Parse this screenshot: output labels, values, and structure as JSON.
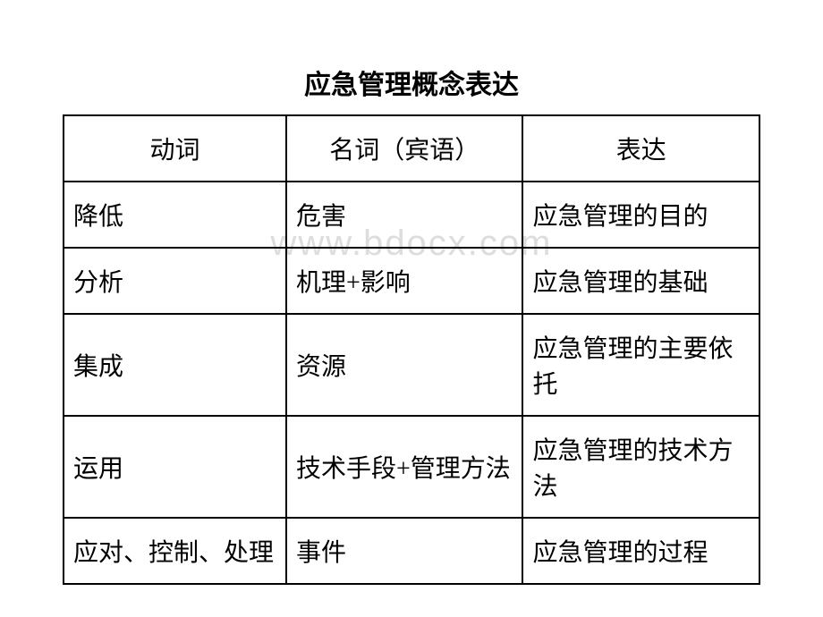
{
  "title": "应急管理概念表达",
  "watermark": "www.bdocx.com",
  "table": {
    "columns": [
      "动词",
      "名词（宾语）",
      "表达"
    ],
    "rows": [
      [
        "降低",
        "危害",
        "应急管理的目的"
      ],
      [
        "分析",
        "机理+影响",
        "应急管理的基础"
      ],
      [
        "集成",
        "资源",
        "应急管理的主要依托"
      ],
      [
        "运用",
        "技术手段+管理方法",
        "应急管理的技术方法"
      ],
      [
        "应对、控制、处理",
        "事件",
        "应急管理的过程"
      ]
    ],
    "border_color": "#000000",
    "background_color": "#ffffff",
    "title_fontsize": 30,
    "cell_fontsize": 28,
    "font_family": "KaiTi"
  }
}
